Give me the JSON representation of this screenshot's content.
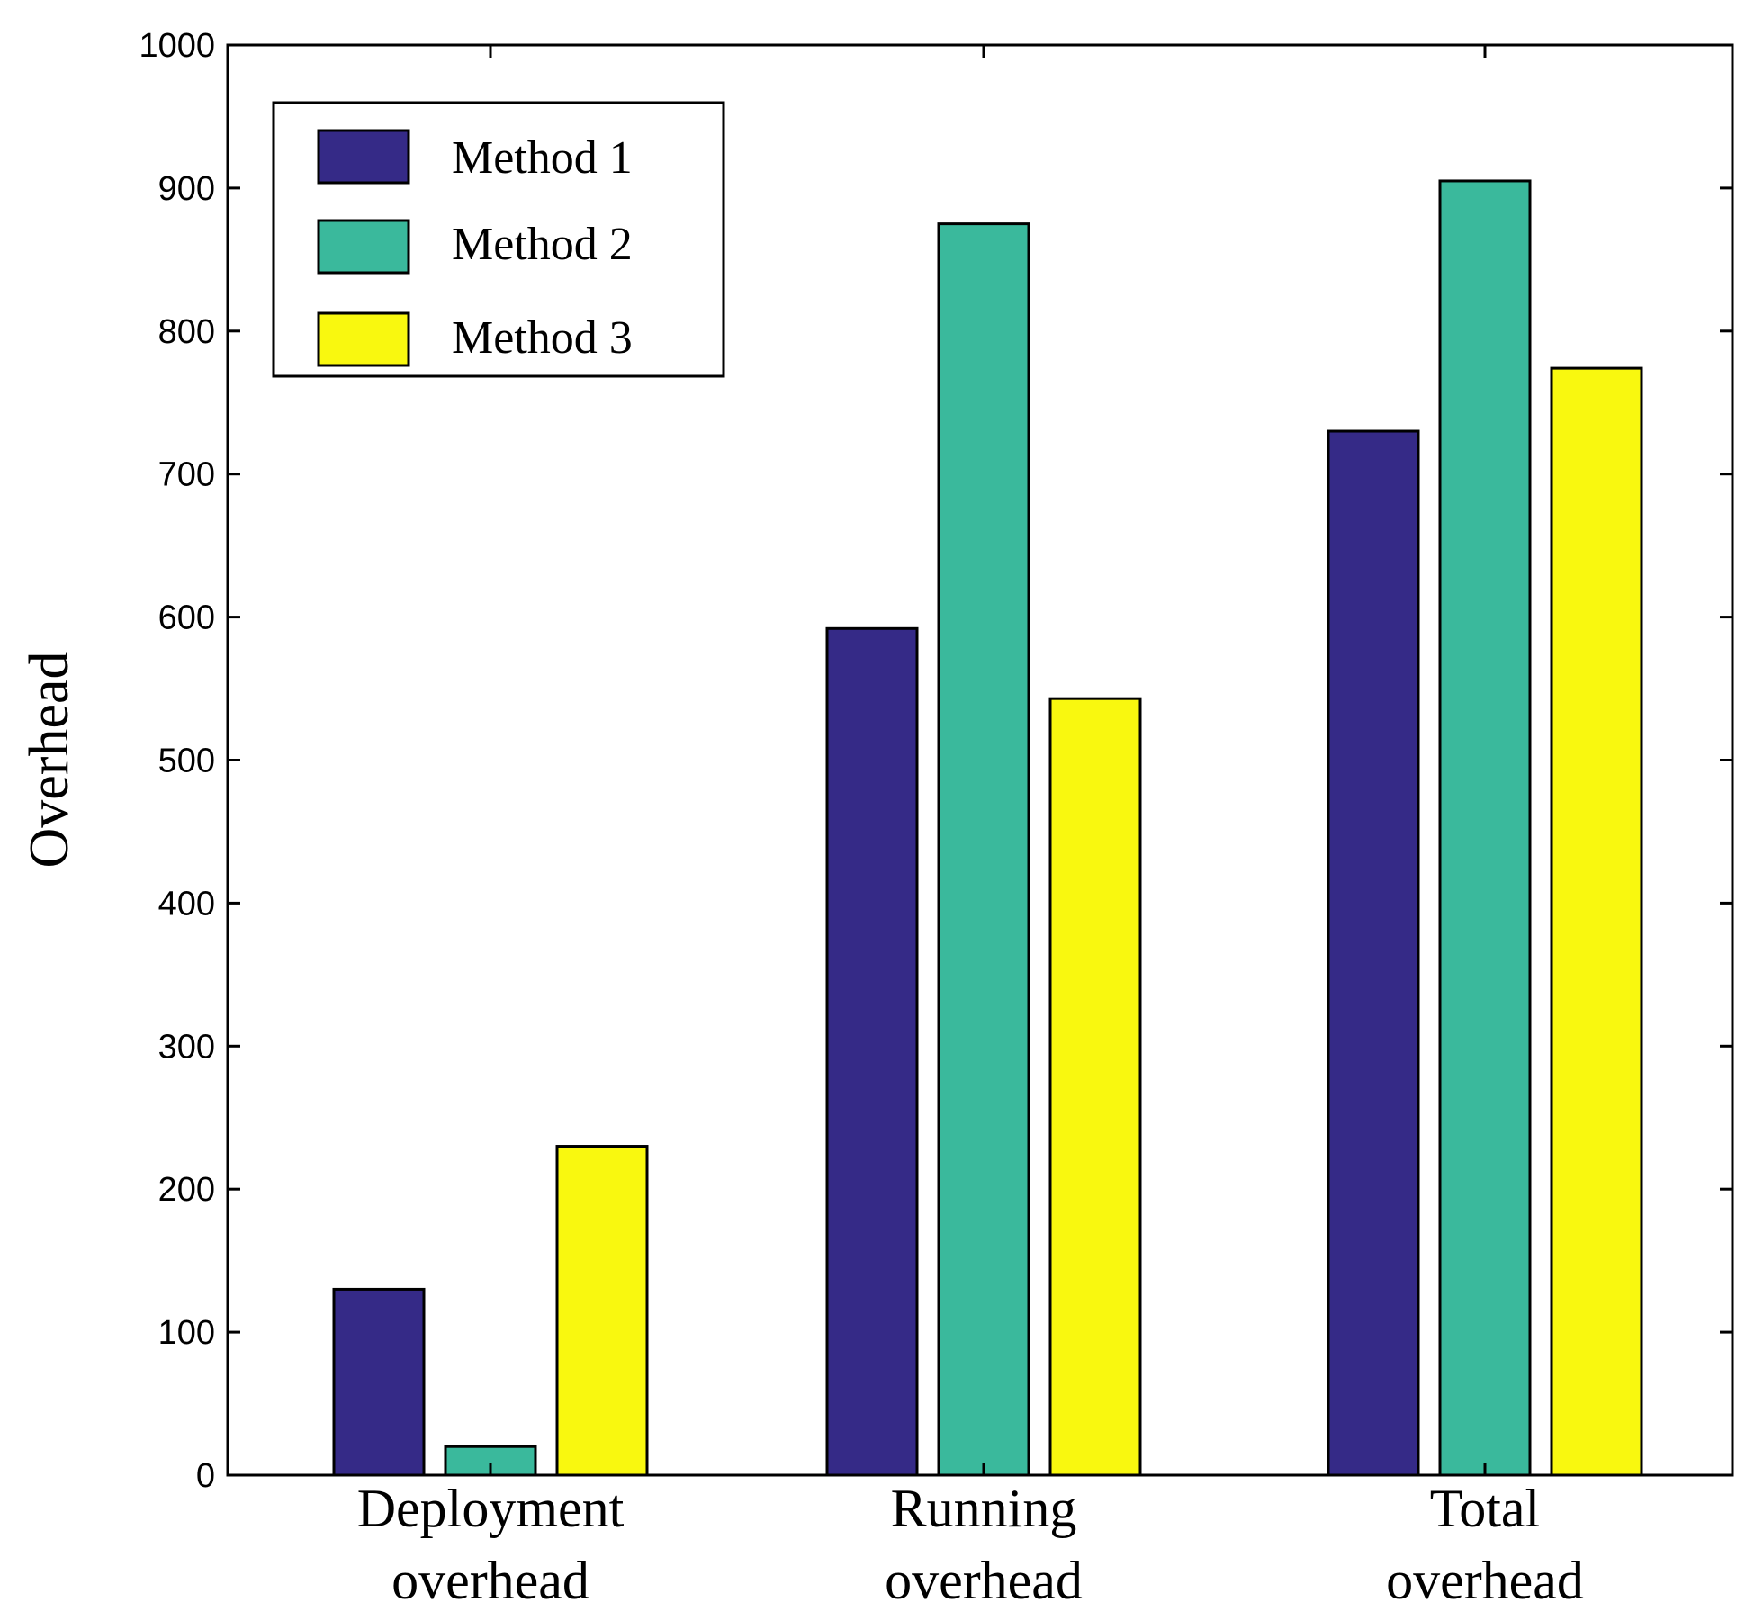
{
  "chart_data": {
    "type": "bar",
    "title": "",
    "xlabel": "",
    "ylabel": "Overhead",
    "ylim": [
      0,
      1000
    ],
    "yticks": [
      "0",
      "100",
      "200",
      "300",
      "400",
      "500",
      "600",
      "700",
      "800",
      "900",
      "1000"
    ],
    "categories": [
      [
        "Deployment",
        "overhead"
      ],
      [
        "Running",
        "overhead"
      ],
      [
        "Total",
        "overhead"
      ]
    ],
    "series": [
      {
        "name": "Method 1",
        "color": "#352a87",
        "values": [
          130,
          592,
          730
        ]
      },
      {
        "name": "Method 2",
        "color": "#3ab99c",
        "values": [
          20,
          875,
          905
        ]
      },
      {
        "name": "Method 3",
        "color": "#f9f80f",
        "values": [
          230,
          543,
          774
        ]
      }
    ],
    "legend_position": "top-left",
    "grid": false
  }
}
